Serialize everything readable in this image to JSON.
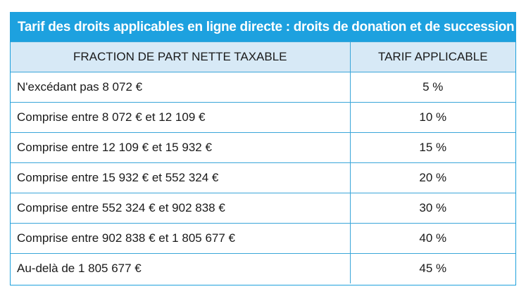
{
  "title": "Tarif des droits applicables en ligne directe : droits de donation et de succession",
  "table": {
    "headers": [
      "FRACTION DE PART NETTE TAXABLE",
      "TARIF APPLICABLE"
    ],
    "rows": [
      {
        "fraction": "N'excédant pas 8 072 €",
        "rate": "5 %"
      },
      {
        "fraction": "Comprise entre 8 072 € et 12 109 €",
        "rate": "10 %"
      },
      {
        "fraction": "Comprise entre 12 109 € et 15 932 €",
        "rate": "15 %"
      },
      {
        "fraction": "Comprise entre 15 932 € et 552 324 €",
        "rate": "20 %"
      },
      {
        "fraction": "Comprise entre 552 324 € et 902 838 €",
        "rate": "30 %"
      },
      {
        "fraction": "Comprise entre 902 838 € et 1 805 677 €",
        "rate": "40 %"
      },
      {
        "fraction": "Au-delà de 1 805 677 €",
        "rate": "45 %"
      }
    ]
  },
  "colors": {
    "title_background": "#1da1df",
    "header_background": "#d7e9f6",
    "border": "#3aa6d9"
  }
}
